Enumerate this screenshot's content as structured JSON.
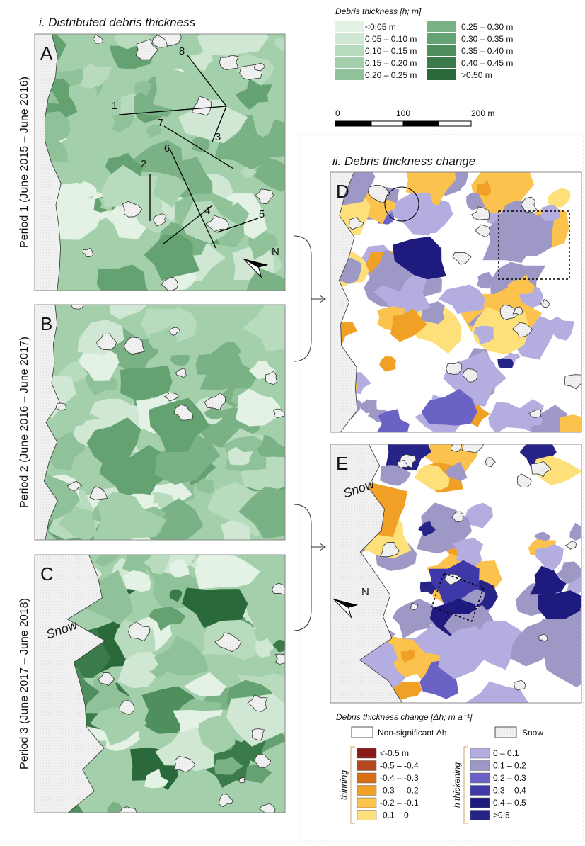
{
  "section_i": {
    "title": "i. Distributed debris thickness"
  },
  "section_ii": {
    "title": "ii. Debris thickness change"
  },
  "panels": [
    {
      "label": "A",
      "period": "Period 1 (June 2015 – June 2016)"
    },
    {
      "label": "B",
      "period": "Period 2 (June 2016 – June 2017)"
    },
    {
      "label": "C",
      "period": "Period 3 (June 2017 – June 2018)"
    },
    {
      "label": "D"
    },
    {
      "label": "E"
    }
  ],
  "profile_labels": [
    "1",
    "2",
    "3",
    "4",
    "5",
    "6",
    "7",
    "8"
  ],
  "snow_labels": [
    "Snow",
    "Snow"
  ],
  "north_labels": [
    "N",
    "N"
  ],
  "thickness_legend": {
    "title": "Debris thickness [h; m]",
    "items": [
      {
        "label": "<0.05 m",
        "color": "#e3f2e5"
      },
      {
        "label": "0.05 – 0.10 m",
        "color": "#cfe7d3"
      },
      {
        "label": "0.10 – 0.15 m",
        "color": "#b8dbbe"
      },
      {
        "label": "0.15 – 0.20 m",
        "color": "#a3cfab"
      },
      {
        "label": "0.20 – 0.25 m",
        "color": "#8fc298"
      },
      {
        "label": "0.25 – 0.30 m",
        "color": "#7ab285"
      },
      {
        "label": "0.30 – 0.35 m",
        "color": "#65a271"
      },
      {
        "label": "0.35 – 0.40 m",
        "color": "#4f8f5d"
      },
      {
        "label": "0.40 – 0.45 m",
        "color": "#3b7b4a"
      },
      {
        "label": ">0.50 m",
        "color": "#2a6a3a"
      }
    ]
  },
  "scale_bar": {
    "labels": [
      "0",
      "100",
      "200 m"
    ]
  },
  "change_legend": {
    "title": "Debris thickness change [Δh; m a⁻¹]",
    "non_significant": "Non-significant Δh",
    "snow": "Snow",
    "thinning_label": "thinning",
    "thickening_label": "h thickening",
    "thinning": [
      {
        "label": "<-0.5 m",
        "color": "#8b1a1a"
      },
      {
        "label": "-0.5 – -0.4",
        "color": "#b5461e"
      },
      {
        "label": "-0.4 – -0.3",
        "color": "#d86f14"
      },
      {
        "label": "-0.3 – -0.2",
        "color": "#f0a125"
      },
      {
        "label": "-0.2 – -0.1",
        "color": "#fbc24e"
      },
      {
        "label": "-0.1 – 0",
        "color": "#fde07a"
      }
    ],
    "thickening": [
      {
        "label": "0 – 0.1",
        "color": "#b3ade0"
      },
      {
        "label": "0.1 – 0.2",
        "color": "#9e98c6"
      },
      {
        "label": "0.2 – 0.3",
        "color": "#6a62c4"
      },
      {
        "label": "0.3 – 0.4",
        "color": "#3f38a8"
      },
      {
        "label": "0.4 – 0.5",
        "color": "#1f1a7e"
      },
      {
        "label": ">0.5",
        "color": "#272488"
      }
    ]
  }
}
